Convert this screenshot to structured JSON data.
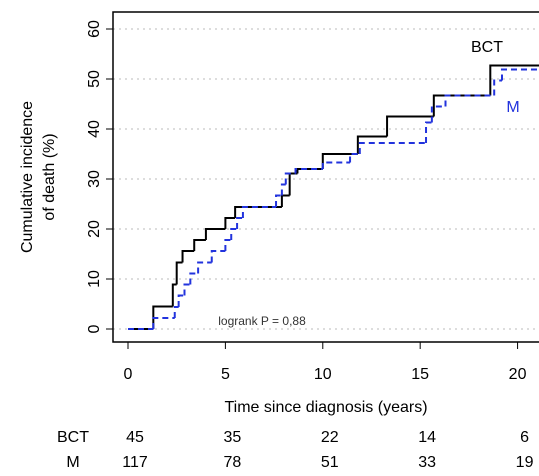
{
  "chart_data": {
    "type": "step",
    "ylabel": [
      "Cumulative incidence",
      "of death (%)"
    ],
    "xlabel": "Time since diagnosis (years)",
    "xlim": [
      -0.77,
      21.1
    ],
    "ylim": [
      -2.6,
      63.4
    ],
    "xticks": [
      0,
      5,
      10,
      15,
      20
    ],
    "yticks": [
      0,
      10,
      20,
      30,
      40,
      50,
      60
    ],
    "grid": true,
    "series": [
      {
        "name": "BCT",
        "color": "#000000",
        "dash": false,
        "x": [
          0,
          1.3,
          2.3,
          2.5,
          2.8,
          3.4,
          4.0,
          5.0,
          5.5,
          7.9,
          8.3,
          8.7,
          10.0,
          11.8,
          13.3,
          15.7,
          18.6,
          21.1
        ],
        "values": [
          0,
          4.5,
          8.9,
          13.3,
          15.6,
          17.8,
          20,
          22.2,
          24.4,
          26.7,
          31.1,
          32,
          35,
          38.5,
          42.5,
          46.7,
          52.7,
          52.7
        ]
      },
      {
        "name": "M",
        "color": "#2233dd",
        "dash": true,
        "x": [
          0,
          1.3,
          2.4,
          2.6,
          2.9,
          3.2,
          3.6,
          4.3,
          5.0,
          5.3,
          5.6,
          5.9,
          7.6,
          7.9,
          8.1,
          8.6,
          10.0,
          11.4,
          11.9,
          15.3,
          15.6,
          16.3,
          18.8,
          19.2,
          21.1
        ],
        "values": [
          0,
          2.2,
          4.4,
          6.7,
          8.9,
          11.1,
          13.3,
          15.6,
          17.8,
          20,
          22.2,
          24.4,
          26.7,
          28.9,
          31.1,
          32,
          33.3,
          35,
          37.2,
          41.3,
          44.5,
          46.7,
          49.7,
          51.9,
          51.9
        ]
      }
    ],
    "annotation": "logrank P = 0,88",
    "risk_table": [
      {
        "name": "BCT",
        "values": [
          45,
          35,
          22,
          14,
          6
        ]
      },
      {
        "name": "M",
        "values": [
          117,
          78,
          51,
          33,
          19
        ]
      }
    ]
  }
}
